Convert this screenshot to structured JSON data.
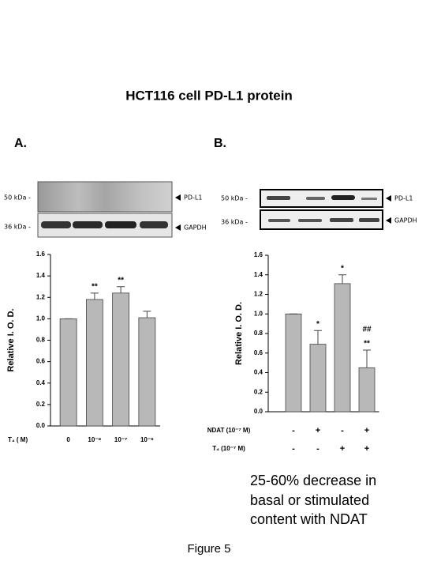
{
  "title": "HCT116 cell PD-L1 protein",
  "figure_label": "Figure 5",
  "note": [
    "25-60% decrease in",
    "basal or stimulated",
    "content with NDAT"
  ],
  "chart_data": [
    {
      "type": "bar",
      "panel": "A.",
      "blot": {
        "markers": [
          "50 kDa -",
          "36 kDa -"
        ],
        "bands": [
          "PD-L1",
          "GAPDH"
        ]
      },
      "y_label": "Relative I. O. D.",
      "x_label": "T₄ ( M)",
      "categories": [
        "0",
        "10⁻⁸",
        "10⁻⁷",
        "10⁻⁶"
      ],
      "values": [
        1.0,
        1.18,
        1.24,
        1.01
      ],
      "errors": [
        0,
        0.06,
        0.06,
        0.06
      ],
      "annotations": [
        [],
        [
          "**"
        ],
        [
          "**"
        ],
        []
      ],
      "color": "#b8b8b8",
      "ylim": [
        0,
        1.6
      ],
      "yticks": [
        {
          "value": 0,
          "label": "0.0"
        },
        {
          "value": 0.2,
          "label": "0.2"
        },
        {
          "value": 0.4,
          "label": "0.4"
        },
        {
          "value": 0.6,
          "label": "0.6"
        },
        {
          "value": 0.8,
          "label": "0.8"
        },
        {
          "value": 1.0,
          "label": "1.0"
        },
        {
          "value": 1.2,
          "label": "1.2"
        },
        {
          "value": 1.4,
          "label": "1.4"
        },
        {
          "value": 1.6,
          "label": "1.6"
        }
      ]
    },
    {
      "type": "bar",
      "panel": "B.",
      "blot": {
        "markers": [
          "50 kDa -",
          "36 kDa -"
        ],
        "bands": [
          "PD-L1",
          "GAPDH"
        ]
      },
      "y_label": "Relative I. O. D.",
      "conditions": [
        {
          "label": "NDAT (10⁻⁷ M)",
          "values": [
            "-",
            "+",
            "-",
            "+"
          ]
        },
        {
          "label": "T₄ (10⁻⁷ M)",
          "values": [
            "-",
            "-",
            "+",
            "+"
          ]
        }
      ],
      "values": [
        1.0,
        0.69,
        1.31,
        0.45
      ],
      "errors": [
        0,
        0.14,
        0.09,
        0.18
      ],
      "annotations": [
        [],
        [
          "*"
        ],
        [
          "*"
        ],
        [
          "##",
          "**"
        ]
      ],
      "color": "#b8b8b8",
      "ylim": [
        0,
        1.6
      ],
      "yticks": [
        {
          "value": 0,
          "label": "0.0"
        },
        {
          "value": 0.2,
          "label": "0.2"
        },
        {
          "value": 0.4,
          "label": "0.4"
        },
        {
          "value": 0.6,
          "label": "0.6"
        },
        {
          "value": 0.8,
          "label": "0.8"
        },
        {
          "value": 1.0,
          "label": "1.0"
        },
        {
          "value": 1.2,
          "label": "1.2"
        },
        {
          "value": 1.4,
          "label": "1.4"
        },
        {
          "value": 1.6,
          "label": "1.6"
        }
      ]
    }
  ]
}
